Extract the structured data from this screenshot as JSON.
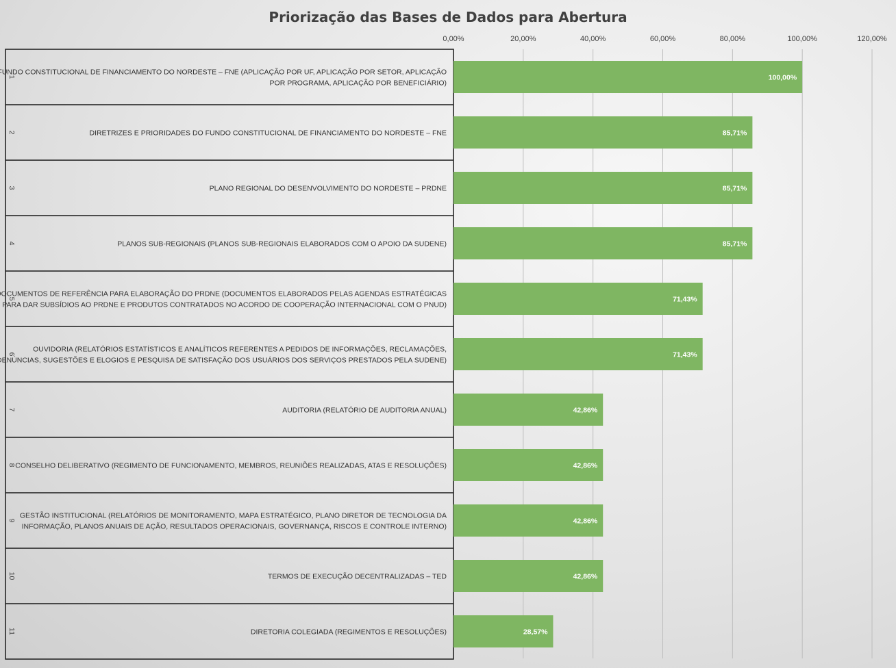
{
  "chart_data": {
    "type": "bar",
    "orientation": "horizontal",
    "title": "Priorização das Bases de Dados para Abertura",
    "xlim": [
      0,
      120
    ],
    "x_ticks": [
      "0,00%",
      "20,00%",
      "40,00%",
      "60,00%",
      "80,00%",
      "100,00%",
      "120,00%"
    ],
    "x_tick_values": [
      0,
      20,
      40,
      60,
      80,
      100,
      120
    ],
    "axis_position": "top",
    "grid": true,
    "bar_color": "#7fb662",
    "items": [
      {
        "num": "1",
        "lines": [
          "FUNDO CONSTITUCIONAL DE FINANCIAMENTO DO NORDESTE – FNE (APLICAÇÃO POR UF, APLICAÇÃO POR SETOR, APLICAÇÃO",
          "POR PROGRAMA, APLICAÇÃO POR BENEFICIÁRIO)"
        ],
        "value": 100.0,
        "label": "100,00%"
      },
      {
        "num": "2",
        "lines": [
          "DIRETRIZES E PRIORIDADES DO FUNDO CONSTITUCIONAL DE FINANCIAMENTO DO NORDESTE – FNE"
        ],
        "value": 85.71,
        "label": "85,71%"
      },
      {
        "num": "3",
        "lines": [
          "PLANO REGIONAL DO DESENVOLVIMENTO DO NORDESTE – PRDNE"
        ],
        "value": 85.71,
        "label": "85,71%"
      },
      {
        "num": "4",
        "lines": [
          "PLANOS SUB-REGIONAIS (PLANOS SUB-REGIONAIS ELABORADOS COM O APOIO DA SUDENE)"
        ],
        "value": 85.71,
        "label": "85,71%"
      },
      {
        "num": "5",
        "lines": [
          "DOCUMENTOS DE REFERÊNCIA PARA ELABORAÇÃO DO PRDNE (DOCUMENTOS ELABORADOS PELAS AGENDAS ESTRATÉGICAS",
          "PARA DAR SUBSÍDIOS AO PRDNE E PRODUTOS CONTRATADOS NO ACORDO DE COOPERAÇÃO INTERNACIONAL COM O PNUD)"
        ],
        "value": 71.43,
        "label": "71,43%"
      },
      {
        "num": "6",
        "lines": [
          "OUVIDORIA (RELATÓRIOS ESTATÍSTICOS E ANALÍTICOS REFERENTES A PEDIDOS DE INFORMAÇÕES, RECLAMAÇÕES,",
          "DENÚNCIAS, SUGESTÕES E ELOGIOS E PESQUISA DE SATISFAÇÃO DOS USUÁRIOS DOS SERVIÇOS PRESTADOS PELA SUDENE)"
        ],
        "value": 71.43,
        "label": "71,43%"
      },
      {
        "num": "7",
        "lines": [
          "AUDITORIA (RELATÓRIO DE AUDITORIA ANUAL)"
        ],
        "value": 42.86,
        "label": "42,86%"
      },
      {
        "num": "8",
        "lines": [
          "CONSELHO DELIBERATIVO (REGIMENTO DE FUNCIONAMENTO, MEMBROS, REUNIÕES REALIZADAS, ATAS E RESOLUÇÕES)"
        ],
        "value": 42.86,
        "label": "42,86%"
      },
      {
        "num": "9",
        "lines": [
          "GESTÃO INSTITUCIONAL (RELATÓRIOS DE MONITORAMENTO, MAPA ESTRATÉGICO, PLANO DIRETOR DE TECNOLOGIA DA",
          "INFORMAÇÃO, PLANOS ANUAIS DE AÇÃO, RESULTADOS OPERACIONAIS, GOVERNANÇA, RISCOS E CONTROLE INTERNO)"
        ],
        "value": 42.86,
        "label": "42,86%"
      },
      {
        "num": "10",
        "lines": [
          "TERMOS DE EXECUÇÃO DECENTRALIZADAS – TED"
        ],
        "value": 42.86,
        "label": "42,86%"
      },
      {
        "num": "11",
        "lines": [
          "DIRETORIA COLEGIADA (REGIMENTOS E RESOLUÇÕES)"
        ],
        "value": 28.57,
        "label": "28,57%"
      }
    ]
  }
}
